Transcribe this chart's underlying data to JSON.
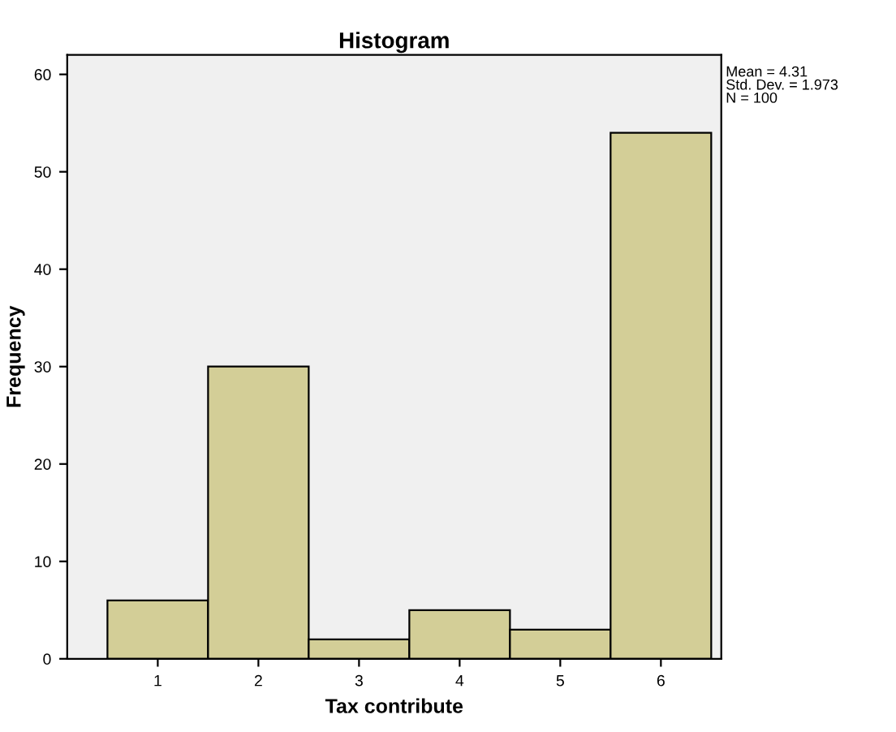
{
  "chart_data": {
    "type": "histogram",
    "title": "Histogram",
    "xlabel": "Tax contribute",
    "ylabel": "Frequency",
    "bins": [
      0.5,
      1.5,
      2.5,
      3.5,
      4.5,
      5.5,
      6.5
    ],
    "values": [
      6,
      30,
      2,
      5,
      3,
      54
    ],
    "color": "#d3ce97",
    "xlim": [
      0.1,
      6.6
    ],
    "xticks": [
      1,
      2,
      3,
      4,
      5,
      6
    ],
    "ylim": [
      0,
      62
    ],
    "yticks": [
      0,
      10,
      20,
      30,
      40,
      50,
      60
    ],
    "grid": false,
    "legend": false,
    "annotations": [
      "Mean = 4.31\nStd. Dev. = 1.973\nN = 100"
    ]
  }
}
